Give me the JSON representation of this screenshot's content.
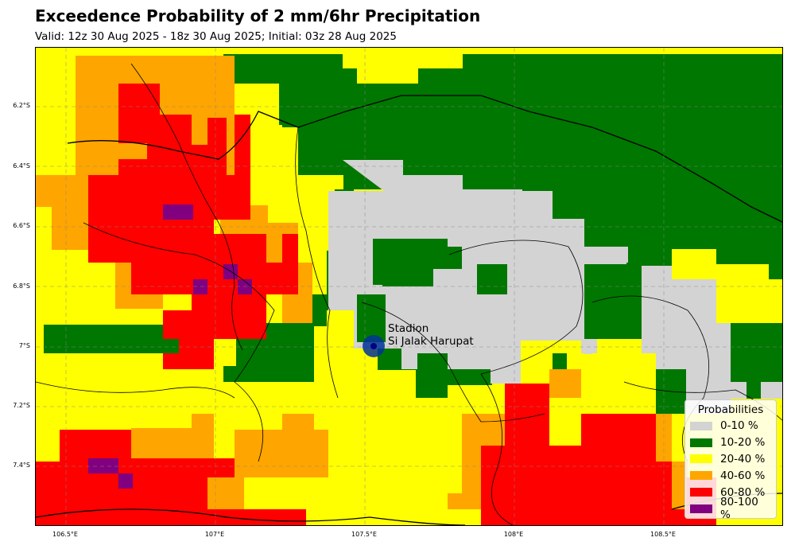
{
  "title": "Exceedence Probability of 2 mm/6hr Precipitation",
  "subtitle": "Valid: 12z 30 Aug 2025 - 18z 30 Aug 2025; Initial: 03z 28 Aug 2025",
  "map": {
    "lat_ticks": [
      "6.2°S",
      "6.4°S",
      "6.6°S",
      "6.8°S",
      "7°S",
      "7.2°S",
      "7.4°S"
    ],
    "lon_ticks": [
      "106.5°E",
      "107°E",
      "107.5°E",
      "108°E",
      "108.5°E"
    ],
    "extent": {
      "lon_min": 106.43,
      "lon_max": 108.94,
      "lat_north": -6.0,
      "lat_south": -7.6
    },
    "gridlines": true,
    "station": {
      "name_line1": "Stadion",
      "name_line2": "Si Jalak Harupat",
      "lon": 107.52,
      "lat": -7.0,
      "color": "#003399"
    }
  },
  "legend": {
    "title": "Probabilities",
    "items": [
      {
        "label": "0-10 %",
        "color": "#d3d3d3"
      },
      {
        "label": "10-20 %",
        "color": "#007700"
      },
      {
        "label": "20-40 %",
        "color": "#ffff00"
      },
      {
        "label": "40-60 %",
        "color": "#ffa500"
      },
      {
        "label": "60-80 %",
        "color": "#ff0000"
      },
      {
        "label": "80-100 %",
        "color": "#800080"
      }
    ]
  }
}
